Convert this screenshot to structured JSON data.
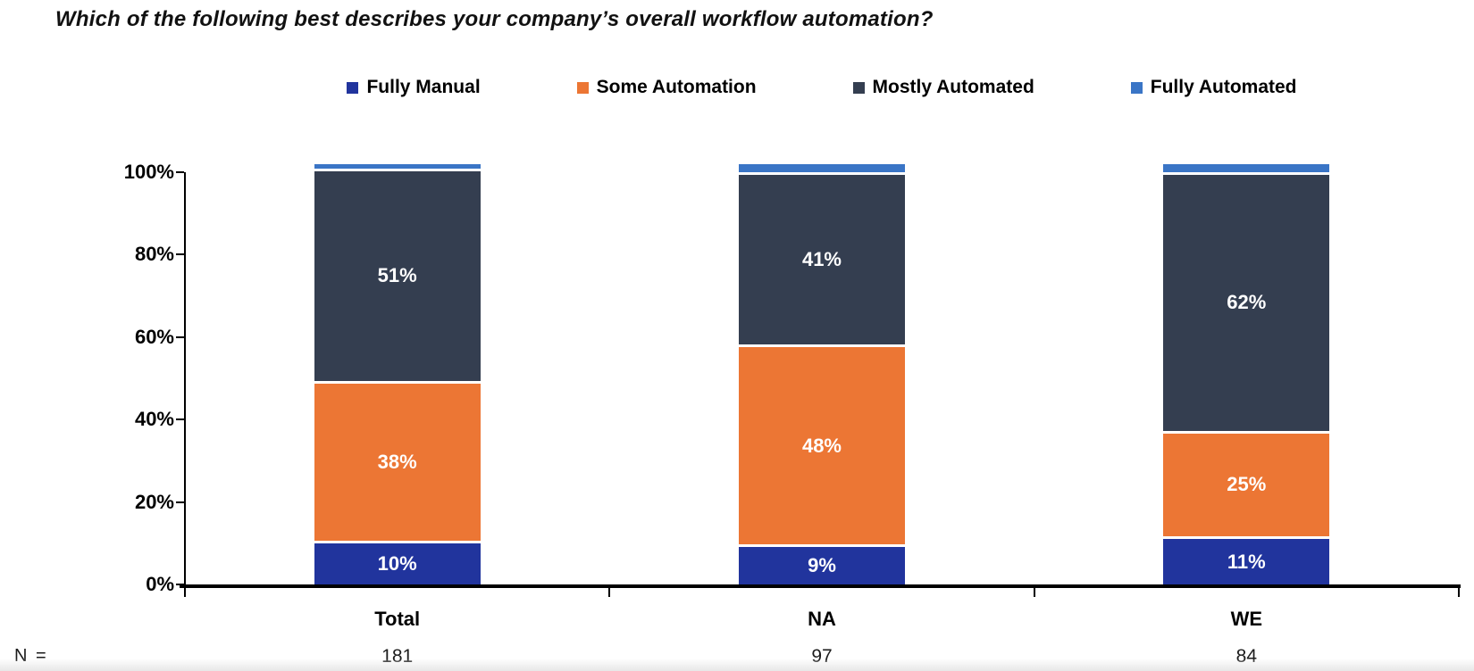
{
  "title": "Which of the following best describes your company’s overall workflow automation?",
  "legend": [
    {
      "label": "Fully Manual",
      "color": "#21349D"
    },
    {
      "label": "Some Automation",
      "color": "#EC7634"
    },
    {
      "label": "Mostly Automated",
      "color": "#343E50"
    },
    {
      "label": "Fully Automated",
      "color": "#3A75C6"
    }
  ],
  "chart_data": {
    "type": "bar",
    "stacked": true,
    "title": "Which of the following best describes your company’s overall workflow automation?",
    "categories": [
      "Total",
      "NA",
      "WE"
    ],
    "series": [
      {
        "name": "Fully Manual",
        "color": "#21349D",
        "values": [
          10,
          9,
          11
        ],
        "labels": [
          "10%",
          "9%",
          "11%"
        ]
      },
      {
        "name": "Some Automation",
        "color": "#EC7634",
        "values": [
          38,
          48,
          25
        ],
        "labels": [
          "38%",
          "48%",
          "25%"
        ]
      },
      {
        "name": "Mostly Automated",
        "color": "#343E50",
        "values": [
          51,
          41,
          62
        ],
        "labels": [
          "51%",
          "41%",
          "62%"
        ]
      },
      {
        "name": "Fully Automated",
        "color": "#3A75C6",
        "values": [
          1,
          2,
          2
        ],
        "labels": [
          "",
          "",
          ""
        ]
      }
    ],
    "yticks": [
      "100%",
      "80%",
      "60%",
      "40%",
      "20%",
      "0%"
    ],
    "ylim": [
      0,
      100
    ],
    "grid": false,
    "legend_position": "top",
    "n_label": "N =",
    "n_values": [
      "181",
      "97",
      "84"
    ]
  }
}
